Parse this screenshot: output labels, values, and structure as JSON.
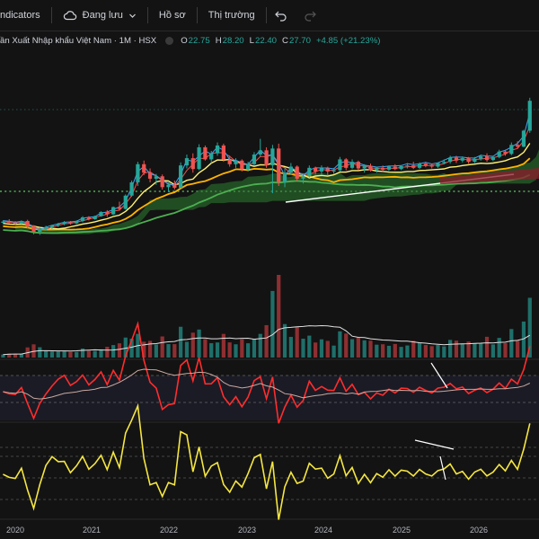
{
  "toolbar": {
    "indicators_label": "ndicators",
    "save_label": "Đang lưu",
    "profile_label": "Hồ sơ",
    "market_label": "Thị trường"
  },
  "legend": {
    "symbol": "ần Xuất Nhập khẩu Việt Nam · 1M · HSX",
    "open_key": "O",
    "open_val": "22.75",
    "high_key": "H",
    "high_val": "28.20",
    "low_key": "L",
    "low_val": "22.40",
    "close_key": "C",
    "close_val": "27.70",
    "change": "+4.85 (+21.23%)"
  },
  "colors": {
    "up": "#26a69a",
    "down": "#ef5350",
    "background": "#131313",
    "cloud": "#2e7d32",
    "rsi": "#ff2d2d",
    "osc": "#f5e642"
  },
  "x_axis": {
    "labels": [
      "2020",
      "2021",
      "2022",
      "2023",
      "2024",
      "2025",
      "2026"
    ]
  },
  "chart_data": {
    "type": "candlestick",
    "start": "2019-09",
    "interval": "1M",
    "x_range": [
      "2019-09",
      "2026-12"
    ],
    "price_range": [
      2,
      31
    ],
    "candles": [
      [
        7.5,
        7.9,
        7.3,
        7.7
      ],
      [
        7.7,
        8.1,
        7.4,
        7.5
      ],
      [
        7.5,
        7.8,
        7.2,
        7.4
      ],
      [
        7.4,
        7.9,
        7.3,
        7.8
      ],
      [
        7.8,
        8.0,
        6.6,
        6.9
      ],
      [
        6.9,
        7.1,
        5.6,
        6.0
      ],
      [
        6.0,
        6.7,
        5.5,
        6.5
      ],
      [
        6.5,
        7.0,
        6.2,
        6.8
      ],
      [
        6.8,
        7.2,
        6.5,
        7.1
      ],
      [
        7.1,
        7.5,
        6.8,
        7.3
      ],
      [
        7.3,
        7.8,
        7.1,
        7.6
      ],
      [
        7.6,
        7.8,
        7.2,
        7.4
      ],
      [
        7.4,
        7.9,
        7.3,
        7.8
      ],
      [
        7.8,
        8.6,
        7.6,
        8.4
      ],
      [
        8.4,
        8.6,
        7.9,
        8.1
      ],
      [
        8.1,
        8.7,
        8.0,
        8.6
      ],
      [
        8.6,
        9.4,
        8.5,
        9.3
      ],
      [
        9.3,
        9.6,
        8.5,
        8.9
      ],
      [
        8.9,
        10.2,
        8.8,
        10.1
      ],
      [
        10.1,
        11.0,
        9.5,
        9.8
      ],
      [
        9.8,
        12.2,
        9.7,
        12.0
      ],
      [
        12.0,
        14.5,
        11.8,
        14.2
      ],
      [
        14.2,
        17.6,
        13.6,
        17.2
      ],
      [
        17.2,
        17.8,
        15.4,
        15.8
      ],
      [
        15.8,
        16.5,
        14.2,
        14.8
      ],
      [
        14.8,
        15.6,
        13.8,
        15.2
      ],
      [
        15.2,
        15.5,
        13.0,
        13.4
      ],
      [
        13.4,
        14.2,
        12.6,
        13.8
      ],
      [
        13.8,
        14.5,
        13.0,
        13.3
      ],
      [
        13.3,
        17.5,
        13.2,
        17.0
      ],
      [
        17.0,
        18.8,
        16.5,
        18.2
      ],
      [
        18.2,
        19.0,
        15.8,
        16.4
      ],
      [
        16.4,
        20.5,
        16.2,
        20.0
      ],
      [
        20.0,
        20.3,
        17.8,
        18.0
      ],
      [
        18.0,
        19.4,
        17.4,
        19.0
      ],
      [
        19.0,
        20.8,
        18.6,
        20.3
      ],
      [
        20.3,
        20.6,
        17.6,
        18.0
      ],
      [
        18.0,
        18.6,
        16.8,
        17.2
      ],
      [
        17.2,
        18.2,
        16.6,
        17.8
      ],
      [
        17.8,
        18.0,
        16.0,
        16.4
      ],
      [
        16.4,
        17.6,
        16.0,
        17.2
      ],
      [
        17.2,
        19.2,
        17.0,
        18.8
      ],
      [
        18.8,
        21.4,
        18.5,
        19.5
      ],
      [
        19.5,
        20.0,
        16.6,
        17.0
      ],
      [
        17.0,
        20.4,
        12.4,
        19.8
      ],
      [
        19.8,
        20.6,
        13.6,
        14.2
      ],
      [
        14.2,
        16.5,
        13.4,
        15.8
      ],
      [
        15.8,
        17.4,
        15.4,
        16.8
      ],
      [
        16.8,
        17.0,
        14.4,
        14.8
      ],
      [
        14.8,
        15.6,
        14.0,
        15.2
      ],
      [
        15.2,
        17.0,
        15.0,
        16.6
      ],
      [
        16.6,
        16.8,
        15.5,
        16.0
      ],
      [
        16.0,
        17.0,
        15.4,
        16.5
      ],
      [
        16.5,
        16.8,
        15.4,
        16.0
      ],
      [
        16.0,
        16.6,
        15.6,
        16.2
      ],
      [
        16.2,
        18.4,
        16.0,
        18.0
      ],
      [
        18.0,
        18.2,
        16.2,
        16.6
      ],
      [
        16.6,
        18.0,
        16.4,
        17.6
      ],
      [
        17.6,
        17.8,
        16.2,
        16.5
      ],
      [
        16.5,
        17.2,
        15.8,
        16.9
      ],
      [
        16.9,
        17.3,
        16.0,
        16.2
      ],
      [
        16.2,
        16.8,
        15.8,
        16.6
      ],
      [
        16.6,
        17.0,
        16.0,
        16.3
      ],
      [
        16.3,
        17.0,
        16.1,
        16.8
      ],
      [
        16.8,
        17.2,
        16.2,
        16.4
      ],
      [
        16.4,
        17.0,
        16.2,
        16.9
      ],
      [
        16.9,
        17.4,
        16.5,
        17.0
      ],
      [
        17.0,
        17.6,
        16.4,
        16.6
      ],
      [
        16.6,
        17.5,
        16.4,
        17.3
      ],
      [
        17.3,
        17.6,
        16.7,
        17.0
      ],
      [
        17.0,
        17.3,
        16.5,
        16.8
      ],
      [
        16.8,
        17.5,
        16.6,
        17.4
      ],
      [
        17.4,
        18.0,
        17.2,
        17.6
      ],
      [
        17.6,
        18.6,
        17.3,
        18.3
      ],
      [
        18.3,
        18.6,
        17.4,
        17.8
      ],
      [
        17.8,
        18.5,
        17.5,
        18.2
      ],
      [
        18.2,
        18.4,
        17.3,
        17.6
      ],
      [
        17.6,
        18.4,
        17.4,
        18.1
      ],
      [
        18.1,
        18.8,
        17.8,
        18.5
      ],
      [
        18.5,
        19.0,
        17.6,
        17.9
      ],
      [
        17.9,
        18.6,
        17.7,
        18.4
      ],
      [
        18.4,
        19.6,
        18.2,
        19.3
      ],
      [
        19.3,
        19.6,
        18.6,
        18.9
      ],
      [
        18.9,
        20.8,
        18.7,
        20.4
      ],
      [
        20.4,
        21.0,
        19.8,
        20.1
      ],
      [
        20.1,
        22.9,
        20.0,
        22.75
      ],
      [
        22.75,
        28.2,
        22.4,
        27.7
      ]
    ]
  }
}
